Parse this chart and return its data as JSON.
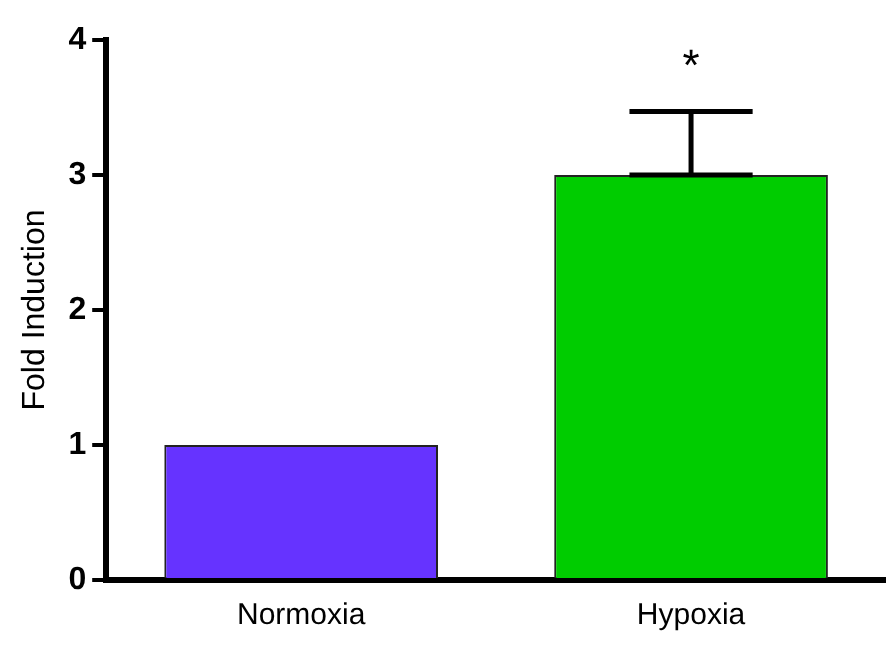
{
  "chart_data": {
    "type": "bar",
    "ylabel": "Fold Induction",
    "categories": [
      "Normoxia",
      "Hypoxia"
    ],
    "values": [
      1,
      3
    ],
    "colors": [
      "#6633ff",
      "#00cc00"
    ],
    "errors": [
      null,
      [
        3,
        3.47
      ]
    ],
    "ylim": [
      0,
      4
    ],
    "yticks": [
      0,
      1,
      2,
      3,
      4
    ],
    "grid": false,
    "legend": false,
    "annotations": [
      "*"
    ]
  }
}
